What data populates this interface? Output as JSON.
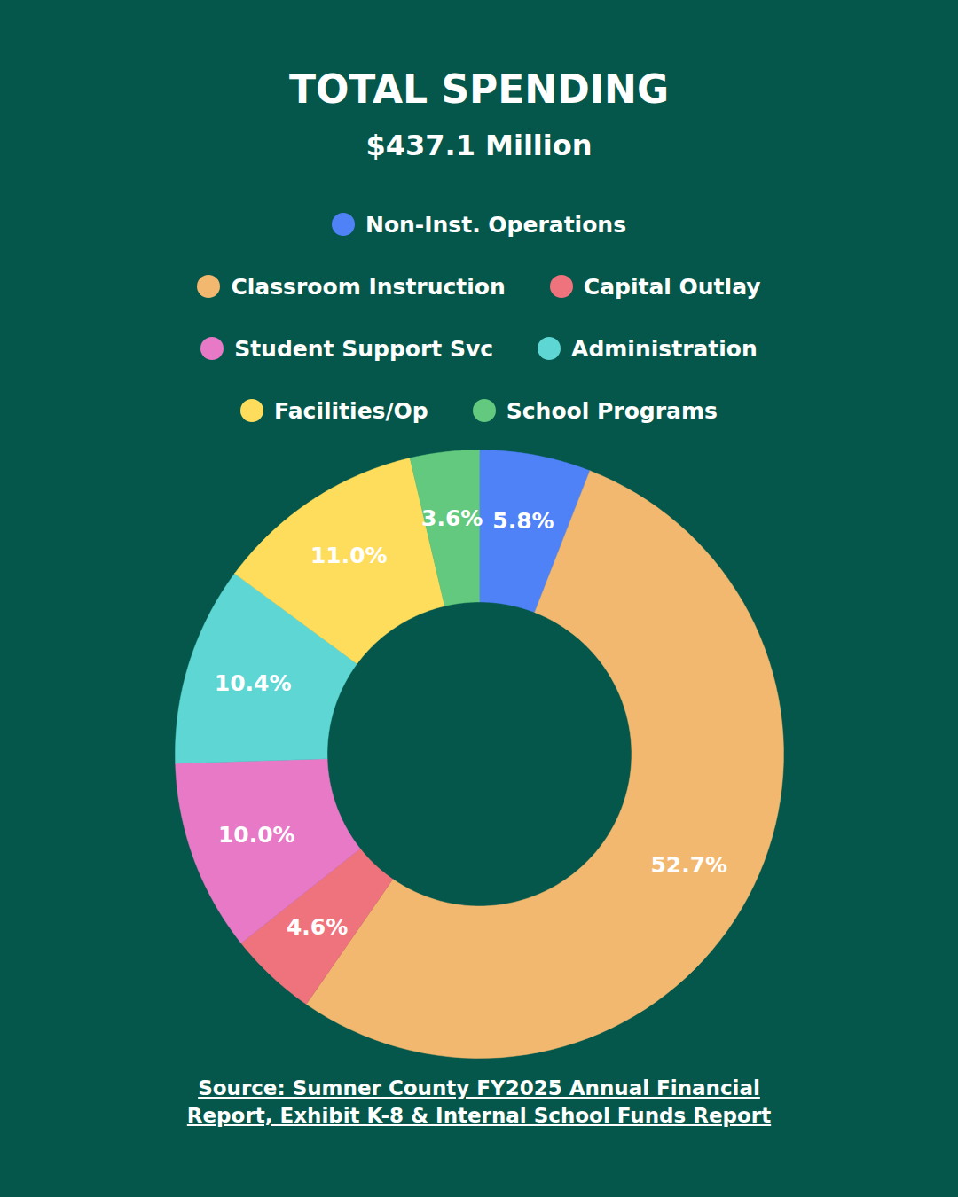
{
  "chart_data": {
    "type": "pie",
    "title": "TOTAL SPENDING",
    "subtitle": "$437.1 Million",
    "categories": [
      "Non-Inst. Operations",
      "Classroom Instruction",
      "Capital Outlay",
      "Student Support Svc",
      "Administration",
      "Facilities/Op",
      "School Programs"
    ],
    "values": [
      5.8,
      52.7,
      4.6,
      10.0,
      10.4,
      11.0,
      3.6
    ],
    "value_labels": [
      "5.8%",
      "52.7%",
      "4.6%",
      "10.0%",
      "10.4%",
      "11.0%",
      "3.6%"
    ],
    "colors": [
      "#4f81f7",
      "#f2b86f",
      "#ef737c",
      "#e879c6",
      "#5dd6d4",
      "#fedd5c",
      "#63c97e"
    ],
    "data_labels": true,
    "legend": "top",
    "caption": "Source: Sumner County FY2025 Annual Financial Report, Exhibit K-8 & Internal School Funds Report"
  }
}
